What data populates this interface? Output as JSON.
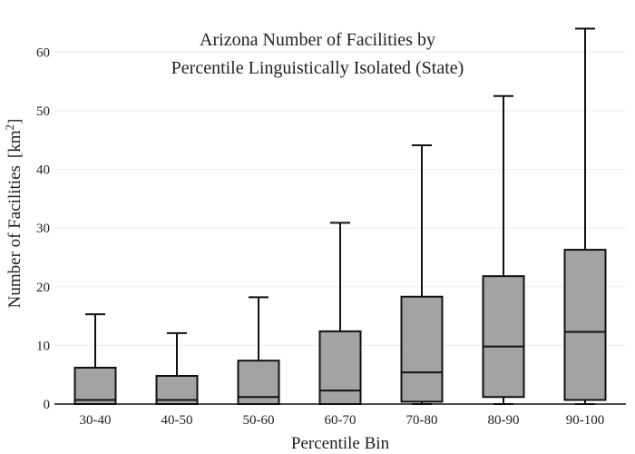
{
  "chart_data": {
    "type": "box",
    "title_lines": [
      "Arizona Number of Facilities by",
      "Percentile Linguistically Isolated (State)"
    ],
    "xlabel": "Percentile Bin",
    "ylabel": "Number of Facilities",
    "ylabel_unit_base": "[km",
    "ylabel_unit_sup": "2",
    "ylabel_unit_close": "]",
    "categories": [
      "30-40",
      "40-50",
      "50-60",
      "60-70",
      "70-80",
      "80-90",
      "90-100"
    ],
    "boxes": [
      {
        "min": 0,
        "q1": 0,
        "median": 0.7,
        "q3": 6.2,
        "max": 15.3
      },
      {
        "min": 0,
        "q1": 0,
        "median": 0.7,
        "q3": 4.8,
        "max": 12.1
      },
      {
        "min": 0,
        "q1": 0,
        "median": 1.2,
        "q3": 7.4,
        "max": 18.2
      },
      {
        "min": 0,
        "q1": 0,
        "median": 2.3,
        "q3": 12.4,
        "max": 30.9
      },
      {
        "min": 0,
        "q1": 0.4,
        "median": 5.4,
        "q3": 18.3,
        "max": 44.1
      },
      {
        "min": 0,
        "q1": 1.2,
        "median": 9.8,
        "q3": 21.8,
        "max": 52.5
      },
      {
        "min": 0,
        "q1": 0.7,
        "median": 12.3,
        "q3": 26.3,
        "max": 64.0
      }
    ],
    "yticks": [
      0,
      10,
      20,
      30,
      40,
      50,
      60
    ],
    "ylim": [
      0,
      65
    ],
    "grid": true,
    "box_color": "#a3a3a3",
    "line_color": "#111111"
  }
}
